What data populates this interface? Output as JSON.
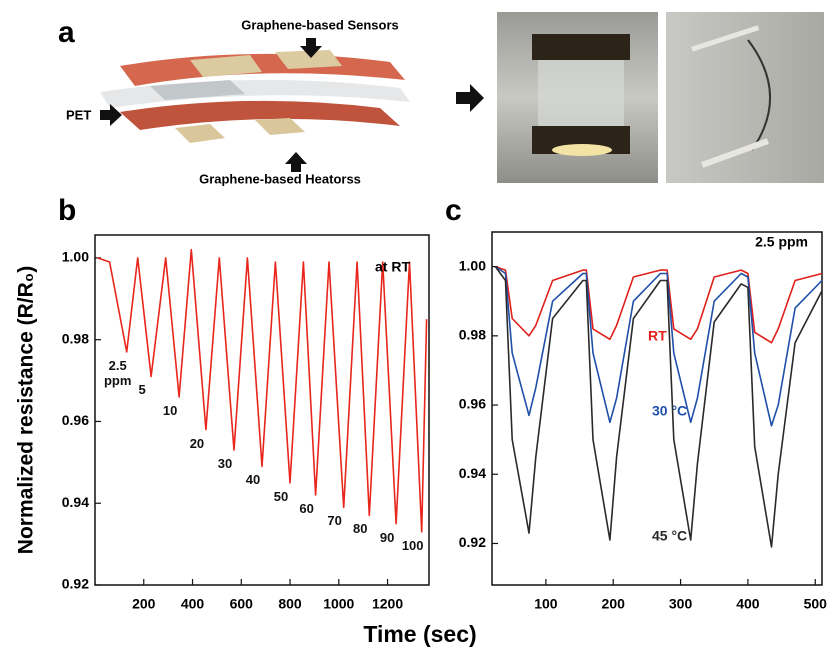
{
  "panel_a": {
    "label": "a",
    "sensors_label": "Graphene-based Sensors",
    "pet_label": "PET",
    "heaters_label": "Graphene-based Heatorss"
  },
  "figure": {
    "xlabel": "Time (sec)",
    "ylabel": "Normalized resistance (R/R₀)"
  },
  "chart_data": [
    {
      "type": "line",
      "panel": "b",
      "annotation": "at RT",
      "color": "#e8261c",
      "x": [
        10,
        60,
        130,
        175,
        230,
        290,
        345,
        395,
        455,
        510,
        570,
        625,
        685,
        740,
        800,
        855,
        905,
        960,
        1020,
        1075,
        1125,
        1180,
        1235,
        1290,
        1340,
        1360
      ],
      "values": [
        1.0,
        0.999,
        0.977,
        1.0,
        0.971,
        1.0,
        0.966,
        1.002,
        0.958,
        1.0,
        0.953,
        1.0,
        0.949,
        0.999,
        0.945,
        0.999,
        0.942,
        0.999,
        0.939,
        0.999,
        0.937,
        0.999,
        0.935,
        0.999,
        0.933,
        0.985
      ],
      "dip_labels": [
        "2.5 ppm",
        "5",
        "10",
        "20",
        "30",
        "40",
        "50",
        "60",
        "70",
        "80",
        "90",
        "100"
      ],
      "xlim": [
        0,
        1370
      ],
      "ylim": [
        0.92,
        1.0056
      ],
      "xticks": [
        200,
        400,
        600,
        800,
        1000,
        1200
      ],
      "yticks": [
        0.92,
        0.94,
        0.96,
        0.98,
        {
          "value": 1.0,
          "label": "1.00"
        }
      ]
    },
    {
      "type": "line",
      "panel": "c",
      "annotation": "2.5 ppm",
      "x": [
        25,
        40,
        50,
        75,
        85,
        110,
        155,
        160,
        170,
        195,
        205,
        230,
        270,
        280,
        290,
        315,
        325,
        350,
        390,
        400,
        410,
        435,
        445,
        470,
        510
      ],
      "series": [
        {
          "name": "RT",
          "color": "#e0201b",
          "values": [
            1.0,
            0.999,
            0.985,
            0.98,
            0.983,
            0.996,
            0.999,
            0.999,
            0.982,
            0.979,
            0.983,
            0.997,
            0.999,
            0.999,
            0.982,
            0.979,
            0.982,
            0.997,
            0.999,
            0.998,
            0.981,
            0.978,
            0.982,
            0.996,
            0.998
          ]
        },
        {
          "name": "30 °C",
          "color": "#1f4fa8",
          "values": [
            1.0,
            0.998,
            0.975,
            0.957,
            0.965,
            0.99,
            0.998,
            0.998,
            0.975,
            0.955,
            0.962,
            0.99,
            0.998,
            0.998,
            0.975,
            0.955,
            0.962,
            0.99,
            0.998,
            0.997,
            0.975,
            0.954,
            0.96,
            0.988,
            0.996
          ]
        },
        {
          "name": "45 °C",
          "color": "#2a2a2a",
          "values": [
            1.0,
            0.996,
            0.95,
            0.923,
            0.945,
            0.985,
            0.996,
            0.996,
            0.95,
            0.921,
            0.945,
            0.985,
            0.996,
            0.996,
            0.95,
            0.921,
            0.943,
            0.984,
            0.995,
            0.994,
            0.948,
            0.919,
            0.94,
            0.978,
            0.993
          ]
        }
      ],
      "xlim": [
        20,
        510
      ],
      "ylim": [
        0.908,
        1.01
      ],
      "xticks": [
        100,
        200,
        300,
        400,
        500
      ],
      "yticks": [
        0.92,
        0.94,
        0.96,
        0.98,
        {
          "value": 1.0,
          "label": "1.00"
        }
      ]
    }
  ]
}
